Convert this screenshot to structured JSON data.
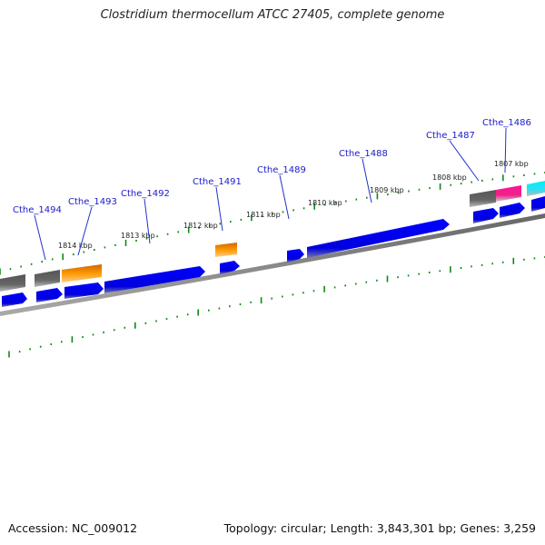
{
  "title": "Clostridium thermocellum ATCC 27405, complete genome",
  "footer": {
    "accession": "Accession: NC_009012",
    "topology": "Topology: circular; Length: 3,843,301 bp; Genes: 3,259"
  },
  "kbp_labels": [
    "1814 kbp",
    "1813 kbp",
    "1812 kbp",
    "1811 kbp",
    "1810 kbp",
    "1809 kbp",
    "1808 kbp",
    "1807 kbp"
  ],
  "gene_labels": [
    "Cthe_1494",
    "Cthe_1493",
    "Cthe_1492",
    "Cthe_1491",
    "Cthe_1489",
    "Cthe_1488",
    "Cthe_1487",
    "Cthe_1486"
  ],
  "colors": {
    "backbone": "#808080",
    "gene_blue": "#0000ee",
    "gene_gray": "#666666",
    "gene_orange": "#ee8800",
    "gene_pink": "#ee1188",
    "gene_cyan": "#00ddee",
    "tick_green": "#118811",
    "label_blue": "#1a1acc"
  }
}
